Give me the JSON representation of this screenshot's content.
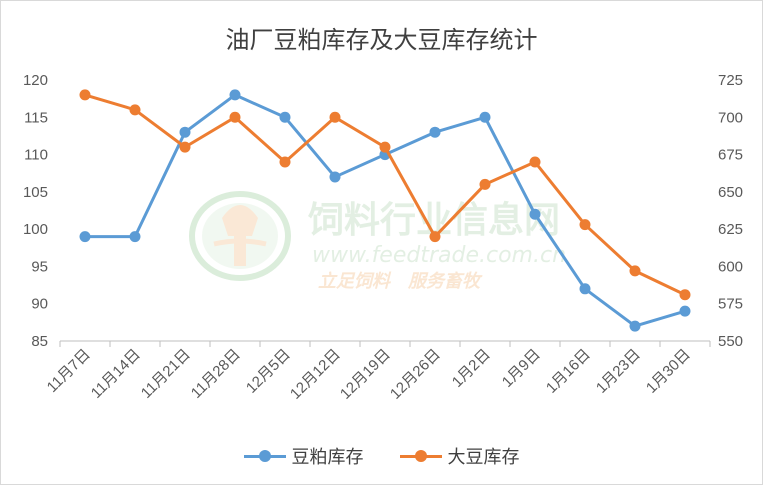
{
  "chart_data": {
    "type": "line",
    "title": "油厂豆粕库存及大豆库存统计",
    "categories": [
      "11月7日",
      "11月14日",
      "11月21日",
      "11月28日",
      "12月5日",
      "12月12日",
      "12月19日",
      "12月26日",
      "1月2日",
      "1月9日",
      "1月16日",
      "1月23日",
      "1月30日"
    ],
    "y_left": {
      "min": 85,
      "max": 120,
      "step": 5,
      "ticks": [
        "85",
        "90",
        "95",
        "100",
        "105",
        "110",
        "115",
        "120"
      ]
    },
    "y_right": {
      "min": 550,
      "max": 725,
      "step": 25,
      "ticks": [
        "550",
        "575",
        "600",
        "625",
        "650",
        "675",
        "700",
        "725"
      ]
    },
    "series": [
      {
        "name": "豆粕库存",
        "axis": "left",
        "color": "#5b9bd5",
        "values": [
          99,
          99,
          113,
          118,
          115,
          107,
          110,
          113,
          115,
          102,
          92,
          87,
          89
        ]
      },
      {
        "name": "大豆库存",
        "axis": "right",
        "color": "#ed7d31",
        "values": [
          715,
          705,
          680,
          700,
          670,
          700,
          680,
          620,
          655,
          670,
          628,
          597,
          581
        ]
      }
    ],
    "grid": false,
    "legend": "bottom"
  },
  "watermark": {
    "line1": "饲料行业信息网",
    "line2": "www.feedtrade.com.cn",
    "line3": "立足饲料　服务畜牧"
  }
}
